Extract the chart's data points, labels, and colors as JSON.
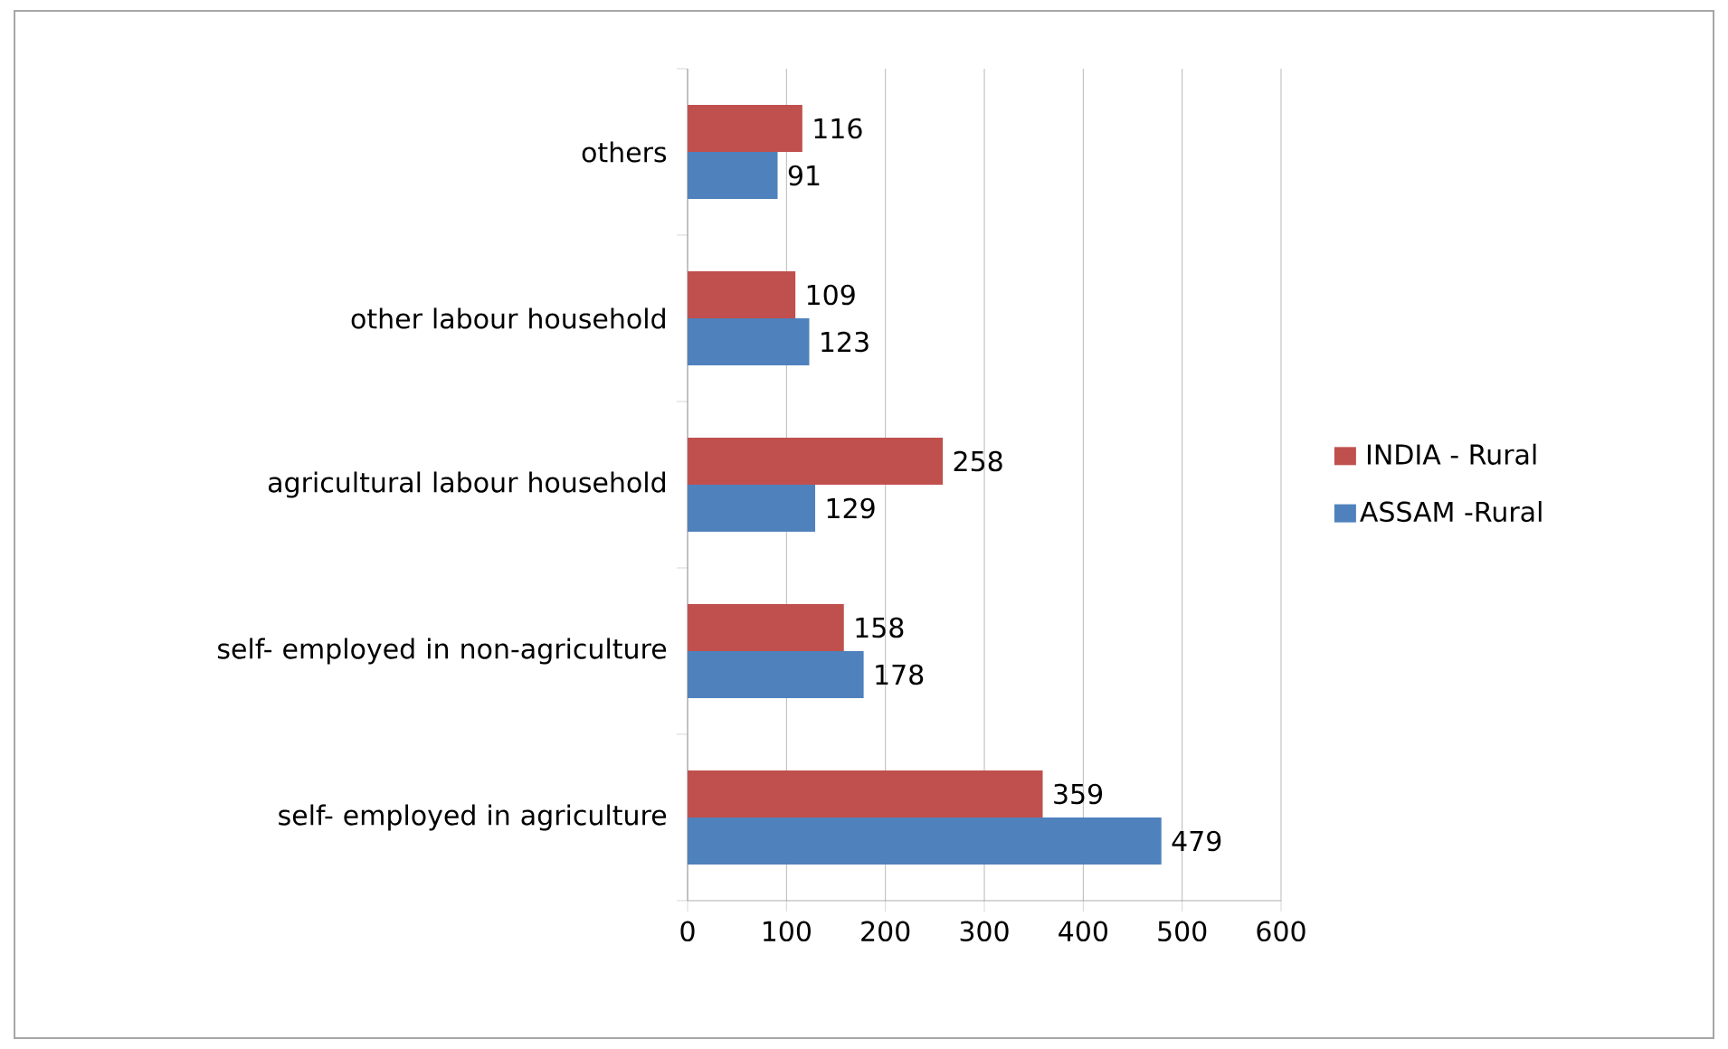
{
  "chart_data": {
    "type": "bar",
    "orientation": "horizontal",
    "categories": [
      "others",
      "other labour household",
      "agricultural labour household",
      "self- employed in non-agriculture",
      "self- employed in agriculture"
    ],
    "series": [
      {
        "name": "INDIA - Rural",
        "color": "#c0504d",
        "values": [
          116,
          109,
          258,
          158,
          359
        ]
      },
      {
        "name": "ASSAM -Rural",
        "color": "#4f81bd",
        "values": [
          91,
          123,
          129,
          178,
          479
        ]
      }
    ],
    "xlim": [
      0,
      600
    ],
    "xticks": [
      0,
      100,
      200,
      300,
      400,
      500,
      600
    ],
    "grid": "x",
    "legend": "right",
    "data_labels": true
  }
}
